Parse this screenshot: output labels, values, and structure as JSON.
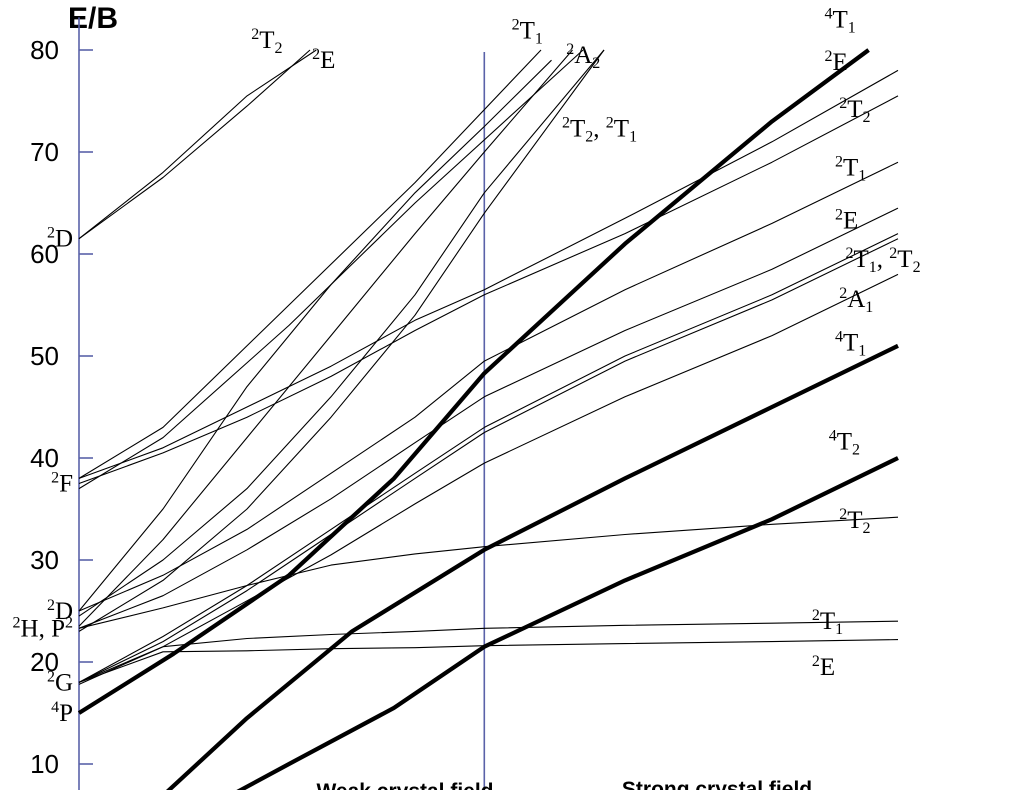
{
  "chart_data": {
    "type": "line",
    "ylabel": "E/B",
    "yticks": [
      10,
      20,
      30,
      40,
      50,
      60,
      70,
      80
    ],
    "ylim": [
      6,
      83
    ],
    "xlim": [
      0,
      3.9
    ],
    "divider_x": 1.93,
    "region_labels": [
      "Weak crystal field",
      "Strong crystal field"
    ],
    "free_ion_terms": [
      {
        "sup": "2",
        "base": "D",
        "y": 61.5
      },
      {
        "sup": "2",
        "base": "F",
        "y": 37.5
      },
      {
        "sup": "2",
        "base": "D",
        "y": 25.0
      },
      {
        "sup": "2",
        "base": "H, ",
        "sup2": "2",
        "base2": "P",
        "y": 23.3
      },
      {
        "sup": "2",
        "base": "G",
        "y": 18.0
      },
      {
        "sup": "4",
        "base": "P",
        "y": 15.0
      }
    ],
    "state_labels": [
      {
        "sup": "2",
        "base": "T",
        "sub": "2",
        "x": 0.82,
        "y": 81.0
      },
      {
        "sup": "2",
        "base": "E",
        "x": 1.11,
        "y": 79.0
      },
      {
        "sup": "2",
        "base": "T",
        "sub": "1",
        "x": 2.06,
        "y": 81.9
      },
      {
        "sup": "2",
        "base": "A",
        "sub": "2",
        "x": 2.32,
        "y": 79.5
      },
      {
        "sup": "2",
        "base": "T",
        "sub": "2",
        "base2": ", ",
        "sup2": "2",
        "base3": "T",
        "sub2": "1",
        "x": 2.3,
        "y": 72.3
      },
      {
        "sup": "4",
        "base": "T",
        "sub": "1",
        "x": 3.55,
        "y": 83.0
      },
      {
        "sup": "2",
        "base": "E",
        "x": 3.55,
        "y": 78.8
      },
      {
        "sup": "2",
        "base": "T",
        "sub": "2",
        "x": 3.62,
        "y": 74.2
      },
      {
        "sup": "2",
        "base": "T",
        "sub": "1",
        "x": 3.6,
        "y": 68.5
      },
      {
        "sup": "2",
        "base": "E",
        "x": 3.6,
        "y": 63.3
      },
      {
        "sup": "2",
        "base": "T",
        "sub": "1",
        "base2": ", ",
        "sup2": "2",
        "base3": "T",
        "sub2": "2",
        "x": 3.65,
        "y": 59.5
      },
      {
        "sup": "2",
        "base": "A",
        "sub": "1",
        "x": 3.62,
        "y": 55.6
      },
      {
        "sup": "4",
        "base": "T",
        "sub": "1",
        "x": 3.6,
        "y": 51.3
      },
      {
        "sup": "4",
        "base": "T",
        "sub": "2",
        "x": 3.57,
        "y": 41.6
      },
      {
        "sup": "2",
        "base": "T",
        "sub": "2",
        "x": 3.62,
        "y": 33.9
      },
      {
        "sup": "2",
        "base": "T",
        "sub": "1",
        "x": 3.49,
        "y": 24.0
      },
      {
        "sup": "2",
        "base": "E",
        "x": 3.49,
        "y": 19.5
      }
    ],
    "series": [
      {
        "weight": "thick",
        "x": [
          0,
          0.45,
          1.0,
          1.5,
          1.93,
          2.6,
          3.3,
          3.76
        ],
        "y": [
          15.0,
          20.8,
          28.5,
          38.0,
          48.3,
          61.0,
          73.0,
          80.0
        ]
      },
      {
        "weight": "thick",
        "x": [
          0.3,
          0.8,
          1.3,
          1.93,
          2.6,
          3.3,
          3.9
        ],
        "y": [
          5.0,
          14.5,
          23.0,
          31.0,
          38.0,
          45.0,
          51.0
        ]
      },
      {
        "weight": "thick",
        "x": [
          0.55,
          1.0,
          1.5,
          1.93,
          2.6,
          3.3,
          3.9
        ],
        "y": [
          5.0,
          10.0,
          15.5,
          21.5,
          28.0,
          34.0,
          40.0
        ]
      },
      {
        "weight": "thin",
        "x": [
          0,
          0.4,
          0.8,
          1.13
        ],
        "y": [
          61.5,
          68.0,
          75.5,
          80.0
        ]
      },
      {
        "weight": "thin",
        "x": [
          0,
          0.4,
          0.8,
          1.1
        ],
        "y": [
          61.5,
          67.5,
          74.5,
          80.0
        ]
      },
      {
        "weight": "thin",
        "x": [
          0,
          0.4,
          1.0,
          1.6,
          2.2
        ],
        "y": [
          38.0,
          43.0,
          55.0,
          67.0,
          80.0
        ]
      },
      {
        "weight": "thin",
        "x": [
          0,
          0.4,
          1.0,
          1.6,
          2.4
        ],
        "y": [
          37.0,
          42.0,
          53.0,
          65.0,
          80.0
        ]
      },
      {
        "weight": "thin",
        "x": [
          0,
          0.4,
          0.8,
          1.2,
          1.6,
          1.93,
          2.6,
          3.3,
          3.9
        ],
        "y": [
          38.0,
          41.0,
          45.0,
          49.0,
          53.5,
          56.5,
          63.5,
          71.0,
          78.0
        ]
      },
      {
        "weight": "thin",
        "x": [
          0,
          0.4,
          0.8,
          1.2,
          1.6,
          1.93,
          2.6,
          3.3,
          3.9
        ],
        "y": [
          37.5,
          40.5,
          44.0,
          48.0,
          52.5,
          56.0,
          62.0,
          69.0,
          75.5
        ]
      },
      {
        "weight": "thin",
        "x": [
          0,
          0.4,
          0.8,
          1.2,
          1.6,
          1.93,
          2.25
        ],
        "y": [
          25.0,
          35.0,
          47.0,
          57.0,
          66.0,
          72.5,
          79.0
        ]
      },
      {
        "weight": "thin",
        "x": [
          0,
          0.4,
          0.8,
          1.2,
          1.6,
          1.93,
          2.35
        ],
        "y": [
          23.5,
          32.0,
          42.0,
          52.0,
          62.0,
          70.0,
          80.0
        ]
      },
      {
        "weight": "thin",
        "x": [
          0,
          0.4,
          0.8,
          1.2,
          1.6,
          1.93,
          2.5
        ],
        "y": [
          24.5,
          30.0,
          37.0,
          46.0,
          56.0,
          66.0,
          80.0
        ]
      },
      {
        "weight": "thin",
        "x": [
          0,
          0.4,
          0.8,
          1.2,
          1.6,
          1.93,
          2.5
        ],
        "y": [
          23.0,
          28.0,
          35.0,
          44.0,
          54.0,
          64.0,
          80.0
        ]
      },
      {
        "weight": "thin",
        "x": [
          0,
          0.4,
          0.8,
          1.2,
          1.6,
          1.93,
          2.6,
          3.3,
          3.9
        ],
        "y": [
          25.0,
          28.5,
          33.0,
          38.5,
          44.0,
          49.5,
          56.5,
          63.0,
          69.0
        ]
      },
      {
        "weight": "thin",
        "x": [
          0,
          0.4,
          0.8,
          1.2,
          1.6,
          1.93,
          2.6,
          3.3,
          3.9
        ],
        "y": [
          23.3,
          26.5,
          31.0,
          36.0,
          41.5,
          46.0,
          52.5,
          58.5,
          64.5
        ]
      },
      {
        "weight": "thin",
        "x": [
          0,
          0.4,
          0.8,
          1.2,
          1.6,
          1.93,
          2.6,
          3.3,
          3.9
        ],
        "y": [
          18.0,
          22.5,
          27.5,
          33.0,
          38.5,
          43.0,
          50.0,
          56.0,
          62.0
        ]
      },
      {
        "weight": "thin",
        "x": [
          0,
          0.4,
          0.8,
          1.2,
          1.6,
          1.93,
          2.6,
          3.3,
          3.9
        ],
        "y": [
          18.0,
          22.0,
          27.0,
          32.5,
          38.0,
          42.5,
          49.5,
          55.5,
          61.5
        ]
      },
      {
        "weight": "thin",
        "x": [
          0,
          0.4,
          0.8,
          1.2,
          1.6,
          1.93,
          2.6,
          3.3,
          3.9
        ],
        "y": [
          17.8,
          21.5,
          26.0,
          30.5,
          35.5,
          39.5,
          46.0,
          52.0,
          58.0
        ]
      },
      {
        "weight": "thin",
        "x": [
          0,
          0.4,
          0.8,
          1.2,
          1.6,
          1.93,
          2.6,
          3.3,
          3.9
        ],
        "y": [
          23.3,
          25.3,
          27.5,
          29.5,
          30.6,
          31.3,
          32.5,
          33.5,
          34.2
        ]
      },
      {
        "weight": "thin",
        "x": [
          0,
          0.4,
          0.8,
          1.2,
          1.6,
          1.93,
          2.6,
          3.3,
          3.9
        ],
        "y": [
          18.0,
          21.5,
          22.3,
          22.7,
          23.0,
          23.3,
          23.6,
          23.8,
          24.0
        ]
      },
      {
        "weight": "thin",
        "x": [
          0,
          0.4,
          0.8,
          1.2,
          1.6,
          1.93,
          2.6,
          3.3,
          3.9
        ],
        "y": [
          18.0,
          21.0,
          21.1,
          21.3,
          21.4,
          21.6,
          21.8,
          22.0,
          22.2
        ]
      }
    ]
  }
}
